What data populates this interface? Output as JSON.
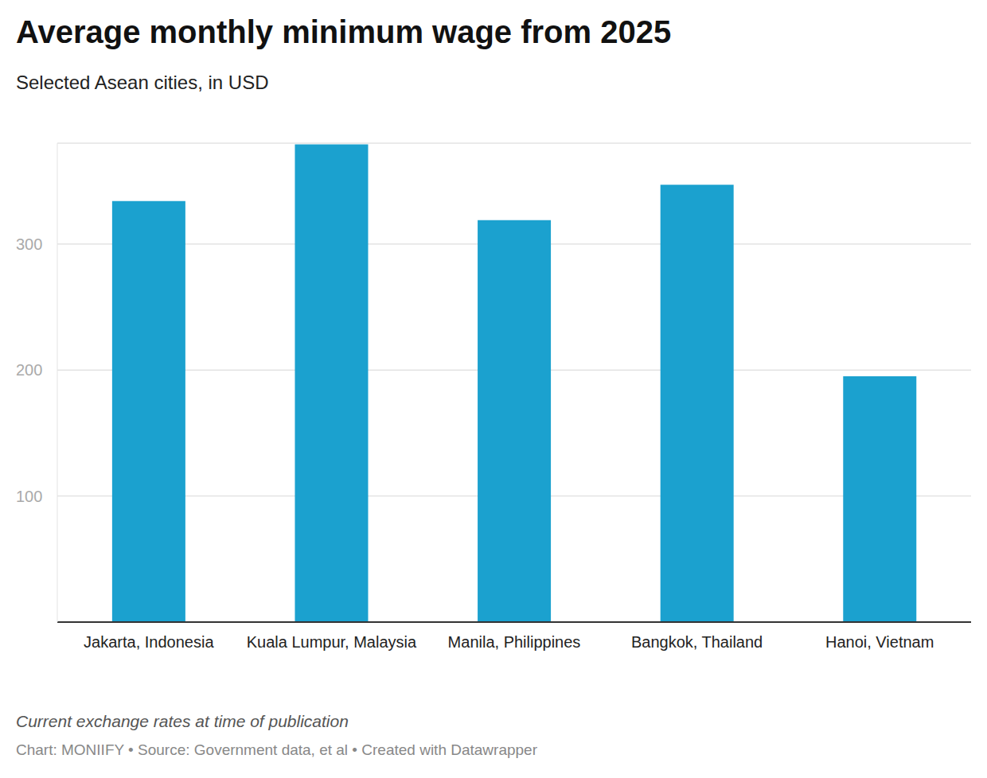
{
  "chart_data": {
    "type": "bar",
    "title": "Average monthly minimum wage from 2025",
    "subtitle": "Selected Asean cities, in USD",
    "categories": [
      "Jakarta, Indonesia",
      "Kuala Lumpur, Malaysia",
      "Manila, Philippines",
      "Bangkok, Thailand",
      "Hanoi, Vietnam"
    ],
    "values": [
      334,
      379,
      319,
      347,
      195
    ],
    "color": "#1ba1cf",
    "ylim": [
      0,
      380
    ],
    "yticks": [
      100,
      200,
      300
    ],
    "grid": true,
    "note": "Current exchange rates at time of publication",
    "source": "Chart: MONIIFY • Source: Government data, et al • Created with Datawrapper"
  }
}
